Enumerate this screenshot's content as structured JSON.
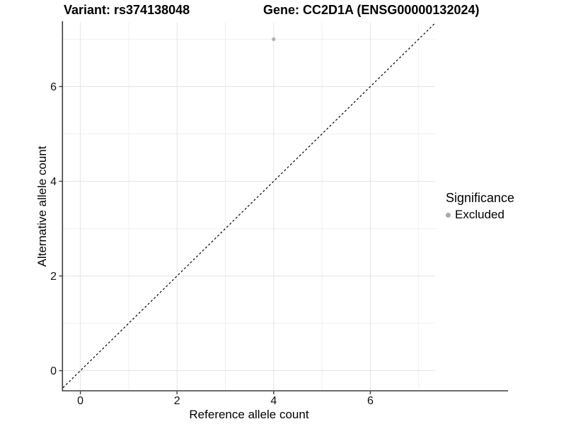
{
  "header": {
    "variant_title": "Variant: rs374138048",
    "gene_title": "Gene: CC2D1A (ENSG00000132024)"
  },
  "chart_data": {
    "type": "scatter",
    "xlabel": "Reference allele count",
    "ylabel": "Alternative allele count",
    "xlim": [
      -0.36,
      7.34
    ],
    "ylim": [
      -0.41,
      7.35
    ],
    "x_major_ticks": [
      0,
      2,
      4,
      6
    ],
    "y_major_ticks": [
      0,
      2,
      4,
      6
    ],
    "x_minor_gridlines": [
      1,
      3,
      5,
      7
    ],
    "y_minor_gridlines": [
      1,
      3,
      5,
      7
    ],
    "grid": "major and minor, light gray on white",
    "reference_line": {
      "type": "identity y=x",
      "style": "dashed",
      "color": "#000000"
    },
    "series": [
      {
        "name": "Excluded",
        "color": "#b0b0b0",
        "points": [
          [
            4,
            7
          ]
        ]
      }
    ],
    "legend": {
      "position": "right",
      "title": "Significance",
      "entries": [
        {
          "label": "Excluded",
          "color": "#a9a9a9"
        }
      ]
    },
    "colors": {
      "grid_major": "#e4e4e4",
      "grid_minor": "#efefef",
      "axis_line": "#3c3c3c",
      "tick_text": "#111111"
    }
  }
}
